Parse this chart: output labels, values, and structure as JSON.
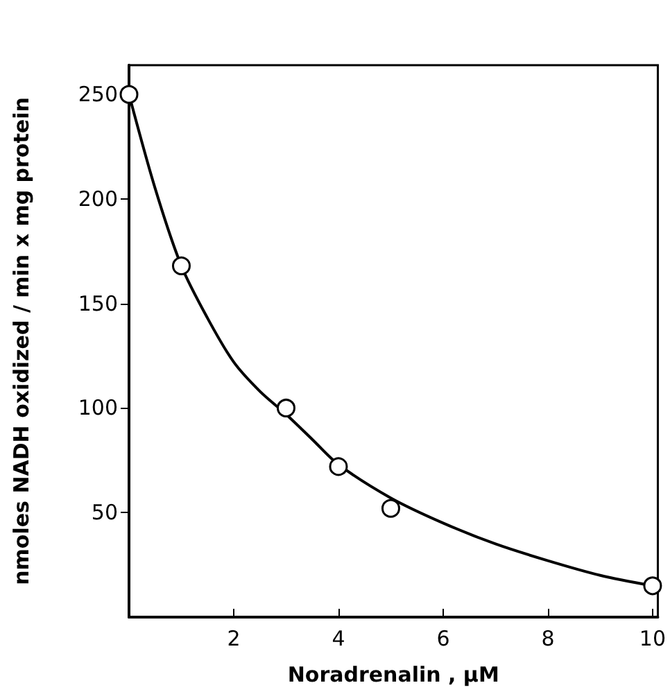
{
  "chart_data": {
    "type": "scatter",
    "xlabel": "Noradrenalin , μM",
    "ylabel": "nmoles NADH oxidized / min x mg protein",
    "xlim": [
      0,
      10.1
    ],
    "xticks": [
      2,
      4,
      6,
      8,
      10
    ],
    "ylim": [
      0,
      264
    ],
    "yticks": [
      50,
      100,
      150,
      200,
      250
    ],
    "grid": false,
    "marker": "circle",
    "series": [
      {
        "type": "line",
        "marker": "none",
        "line_style": "solid",
        "color": "#000000",
        "x": [
          0,
          0.5,
          1,
          1.5,
          2,
          2.5,
          3,
          3.5,
          4,
          5,
          6,
          7,
          8,
          9,
          10
        ],
        "values": [
          250,
          205,
          168,
          143,
          122,
          108,
          97,
          85,
          73,
          57,
          45,
          35,
          27,
          20,
          15
        ]
      },
      {
        "color": "#000000",
        "x": [
          0,
          1,
          3,
          4,
          5,
          10
        ],
        "values": [
          250,
          168,
          100,
          72,
          52,
          15
        ]
      }
    ]
  }
}
